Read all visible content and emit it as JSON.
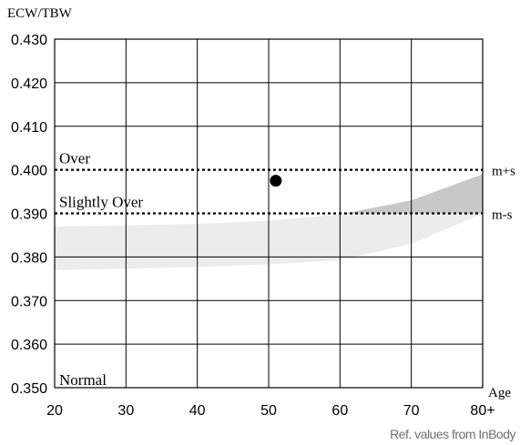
{
  "chart_data": {
    "type": "scatter",
    "ylabel": "ECW/TBW",
    "xlabel": "Age",
    "xlim": [
      20,
      80
    ],
    "ylim": [
      0.35,
      0.43
    ],
    "x_ticks": [
      "20",
      "30",
      "40",
      "50",
      "60",
      "70",
      "80+"
    ],
    "y_ticks": [
      "0.430",
      "0.420",
      "0.410",
      "0.400",
      "0.390",
      "0.380",
      "0.370",
      "0.360",
      "0.350"
    ],
    "grid": true,
    "point": {
      "x": 51,
      "y": 0.3975
    },
    "reference_lines": [
      {
        "y": 0.4,
        "label": "m+s",
        "region_label": "Over"
      },
      {
        "y": 0.39,
        "label": "m-s",
        "region_label": "Slightly Over"
      }
    ],
    "region_bottom_label": "Normal",
    "band": {
      "x": [
        20,
        30,
        40,
        50,
        60,
        70,
        80
      ],
      "lower": [
        0.377,
        0.3773,
        0.3777,
        0.3783,
        0.3793,
        0.383,
        0.39
      ],
      "upper": [
        0.387,
        0.3872,
        0.3876,
        0.3883,
        0.3898,
        0.393,
        0.399
      ]
    },
    "colors": {
      "band_light": "#ececec",
      "band_dark": "#c8c8c8",
      "point": "#000000"
    }
  },
  "footer": {
    "source": "Ref. values from InBody"
  }
}
